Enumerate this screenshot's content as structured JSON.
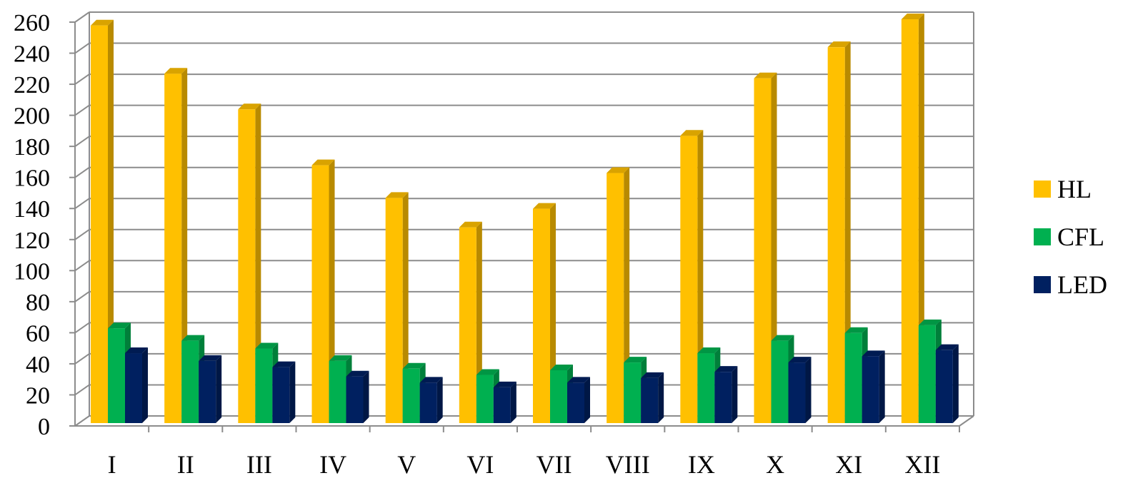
{
  "chart_data": {
    "type": "bar",
    "style": "3d-clustered-column",
    "title": "",
    "xlabel": "",
    "ylabel": "",
    "ylim": [
      0,
      260
    ],
    "yticks": [
      0,
      20,
      40,
      60,
      80,
      100,
      120,
      140,
      160,
      180,
      200,
      220,
      240,
      260
    ],
    "grid": true,
    "legend_position": "right",
    "categories": [
      "I",
      "II",
      "III",
      "IV",
      "V",
      "VI",
      "VII",
      "VIII",
      "IX",
      "X",
      "XI",
      "XII"
    ],
    "series": [
      {
        "name": "HL",
        "color": "#FFC000",
        "values": [
          256,
          225,
          202,
          166,
          145,
          126,
          138,
          161,
          185,
          222,
          242,
          260
        ]
      },
      {
        "name": "CFL",
        "color": "#00B050",
        "values": [
          61,
          53,
          48,
          40,
          35,
          31,
          34,
          39,
          45,
          53,
          58,
          63
        ]
      },
      {
        "name": "LED",
        "color": "#002060",
        "values": [
          45,
          40,
          36,
          30,
          26,
          23,
          26,
          29,
          33,
          39,
          43,
          47
        ]
      }
    ]
  }
}
